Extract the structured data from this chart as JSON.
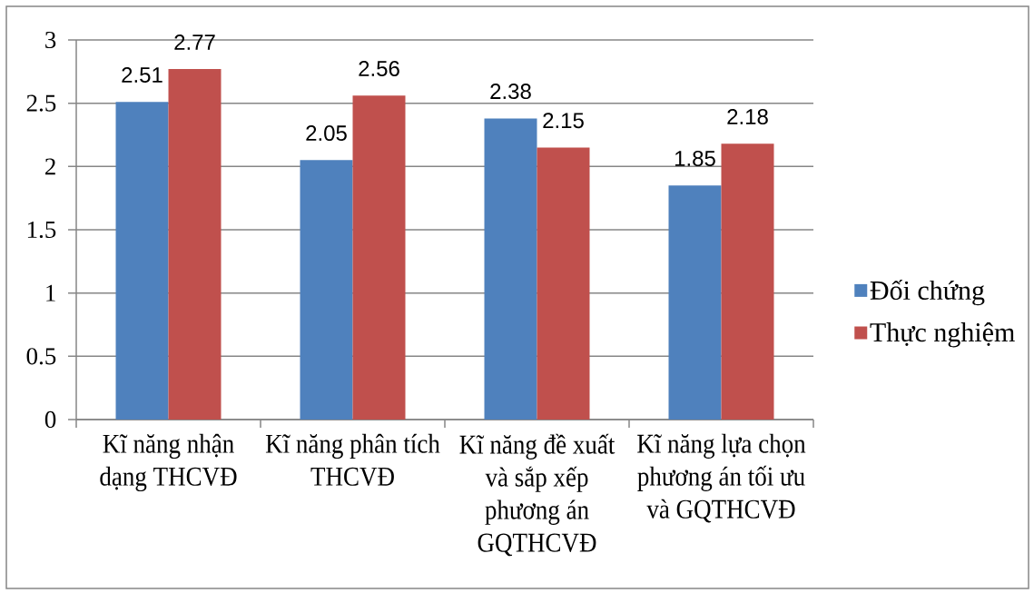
{
  "chart_data": {
    "type": "bar",
    "categories": [
      "Kĩ năng nhận dạng THCVĐ",
      "Kĩ năng phân tích THCVĐ",
      "Kĩ năng đề xuất và sắp xếp phương án GQTHCVĐ",
      "Kĩ năng lựa chọn phương án tối ưu và GQTHCVĐ"
    ],
    "series": [
      {
        "name": "Đối chứng",
        "color": "#4f81bd",
        "values": [
          2.51,
          2.05,
          2.38,
          1.85
        ]
      },
      {
        "name": "Thực nghiệm",
        "color": "#c0504d",
        "values": [
          2.77,
          2.56,
          2.15,
          2.18
        ]
      }
    ],
    "ylim": [
      0,
      3
    ],
    "yticks": [
      0,
      0.5,
      1,
      1.5,
      2,
      2.5,
      3
    ],
    "grid": "y",
    "legend": "right",
    "data_labels": true
  }
}
